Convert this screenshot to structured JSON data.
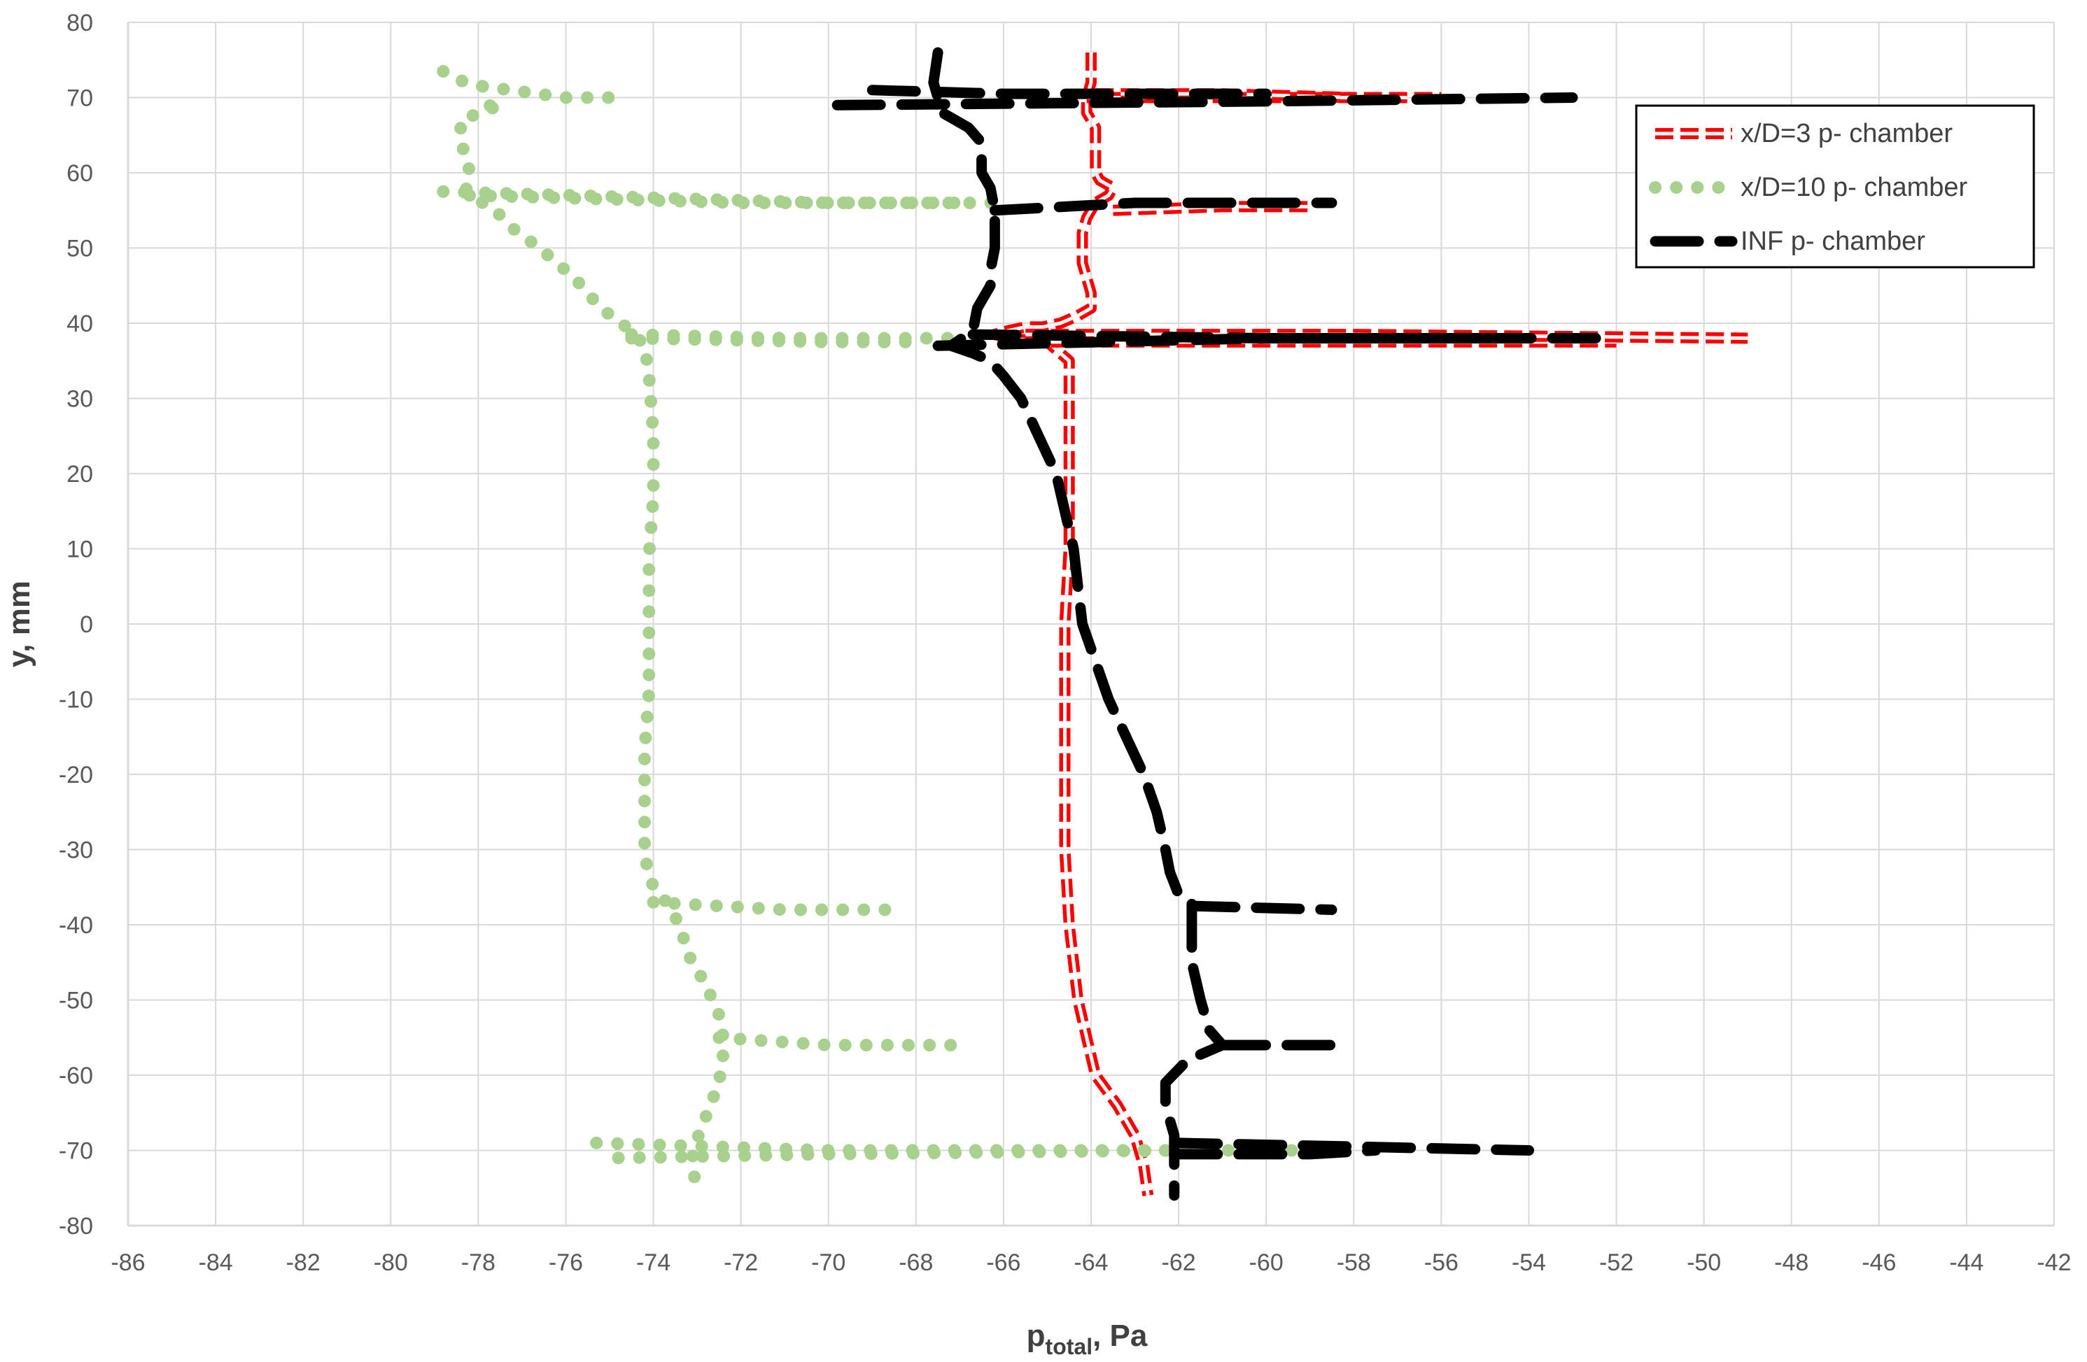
{
  "chart_data": {
    "type": "line",
    "xlabel_main": "p",
    "xlabel_sub": "total",
    "xlabel_unit": ", Pa",
    "ylabel": "y, mm",
    "xlim": [
      -86,
      -42
    ],
    "ylim": [
      -80,
      80
    ],
    "x_ticks": [
      -86,
      -84,
      -82,
      -80,
      -78,
      -76,
      -74,
      -72,
      -70,
      -68,
      -66,
      -64,
      -62,
      -60,
      -58,
      -56,
      -54,
      -52,
      -50,
      -48,
      -46,
      -44,
      -42
    ],
    "y_ticks": [
      80,
      70,
      60,
      50,
      40,
      30,
      20,
      10,
      0,
      -10,
      -20,
      -30,
      -40,
      -50,
      -60,
      -70,
      -80
    ],
    "grid": true,
    "legend_position": "top-right",
    "series": [
      {
        "name": "x/D=3 p- chamber",
        "color": "#ff0000",
        "style": "dashed-double",
        "segments": [
          [
            [
              -64.0,
              76
            ],
            [
              -64.0,
              72
            ],
            [
              -64.1,
              70
            ],
            [
              -64.1,
              68
            ],
            [
              -63.9,
              66
            ],
            [
              -63.9,
              64
            ],
            [
              -63.9,
              62
            ],
            [
              -63.9,
              60
            ],
            [
              -63.8,
              59
            ],
            [
              -63.5,
              58
            ],
            [
              -63.6,
              57
            ],
            [
              -63.9,
              56
            ],
            [
              -64.1,
              54
            ],
            [
              -64.2,
              52
            ],
            [
              -64.2,
              50
            ],
            [
              -64.2,
              48
            ],
            [
              -64.1,
              46
            ],
            [
              -64.0,
              44
            ],
            [
              -64.0,
              42
            ],
            [
              -64.3,
              41
            ],
            [
              -64.7,
              40
            ],
            [
              -65.1,
              39.5
            ],
            [
              -65.5,
              39.5
            ],
            [
              -65.9,
              39
            ],
            [
              -66.2,
              38.5
            ],
            [
              -65.9,
              38
            ],
            [
              -65.0,
              37.5
            ],
            [
              -64.7,
              36
            ],
            [
              -64.5,
              35
            ],
            [
              -64.5,
              30
            ],
            [
              -64.5,
              20
            ],
            [
              -64.5,
              10
            ],
            [
              -64.6,
              0
            ],
            [
              -64.6,
              -10
            ],
            [
              -64.6,
              -20
            ],
            [
              -64.6,
              -30
            ],
            [
              -64.5,
              -40
            ],
            [
              -64.4,
              -45
            ],
            [
              -64.3,
              -50
            ],
            [
              -64.1,
              -55
            ],
            [
              -63.9,
              -60
            ],
            [
              -63.4,
              -64
            ],
            [
              -63.0,
              -68
            ],
            [
              -62.8,
              -72
            ],
            [
              -62.7,
              -76
            ]
          ],
          [
            [
              -64.1,
              70
            ],
            [
              -60,
              70
            ],
            [
              -56,
              70
            ]
          ],
          [
            [
              -63.9,
              70.5
            ],
            [
              -61,
              70.5
            ],
            [
              -58,
              70
            ]
          ],
          [
            [
              -63.5,
              55
            ],
            [
              -61,
              55.5
            ],
            [
              -59,
              55.5
            ]
          ],
          [
            [
              -65.5,
              37.5
            ],
            [
              -58,
              37.5
            ],
            [
              -52,
              37.5
            ]
          ],
          [
            [
              -65.5,
              38.5
            ],
            [
              -58,
              38.5
            ],
            [
              -49,
              38
            ]
          ]
        ]
      },
      {
        "name": "x/D=10 p- chamber",
        "color": "#a9d18e",
        "style": "dotted",
        "segments": [
          [
            [
              -78.8,
              73.5
            ],
            [
              -78.3,
              72
            ],
            [
              -77.9,
              71.5
            ],
            [
              -77.7,
              68.5
            ],
            [
              -77.5,
              69
            ],
            [
              -78.4,
              67
            ],
            [
              -78.4,
              64
            ],
            [
              -78.2,
              61
            ],
            [
              -78.3,
              58
            ],
            [
              -78.2,
              57.5
            ],
            [
              -77.9,
              56
            ],
            [
              -77.6,
              55
            ],
            [
              -77.3,
              53
            ],
            [
              -76.6,
              50
            ],
            [
              -75.8,
              46
            ],
            [
              -75.2,
              42
            ],
            [
              -74.5,
              39
            ],
            [
              -74.2,
              37
            ],
            [
              -74.1,
              33
            ],
            [
              -74.0,
              25
            ],
            [
              -74.0,
              17
            ],
            [
              -74.1,
              9
            ],
            [
              -74.1,
              0
            ],
            [
              -74.1,
              -9
            ],
            [
              -74.2,
              -17
            ],
            [
              -74.2,
              -25
            ],
            [
              -74.2,
              -31
            ],
            [
              -74.0,
              -35
            ],
            [
              -73.7,
              -37
            ],
            [
              -73.4,
              -40
            ],
            [
              -73.2,
              -44
            ],
            [
              -72.8,
              -48
            ],
            [
              -72.5,
              -52
            ],
            [
              -72.4,
              -55
            ],
            [
              -72.4,
              -57
            ],
            [
              -72.5,
              -61
            ],
            [
              -72.7,
              -64
            ],
            [
              -72.9,
              -67
            ],
            [
              -73.1,
              -70
            ],
            [
              -73.1,
              -72
            ],
            [
              -73.0,
              -76
            ]
          ],
          [
            [
              -78.8,
              57.5
            ],
            [
              -70,
              56
            ],
            [
              -66,
              56
            ]
          ],
          [
            [
              -78.2,
              57
            ],
            [
              -72,
              56
            ],
            [
              -67,
              56
            ]
          ],
          [
            [
              -77.9,
              71.5
            ],
            [
              -76,
              70
            ],
            [
              -74.8,
              70
            ]
          ],
          [
            [
              -74.5,
              38
            ],
            [
              -70,
              37.5
            ],
            [
              -68,
              37.5
            ]
          ],
          [
            [
              -74.5,
              38.5
            ],
            [
              -71,
              38
            ],
            [
              -67,
              38
            ]
          ],
          [
            [
              -74.0,
              -37
            ],
            [
              -71,
              -38
            ],
            [
              -68.5,
              -38
            ]
          ],
          [
            [
              -72.5,
              -55
            ],
            [
              -70,
              -56
            ],
            [
              -67,
              -56
            ]
          ],
          [
            [
              -75.3,
              -69
            ],
            [
              -70,
              -70
            ],
            [
              -59,
              -70
            ]
          ],
          [
            [
              -74.8,
              -71
            ],
            [
              -70,
              -70.5
            ],
            [
              -62,
              -70
            ]
          ]
        ]
      },
      {
        "name": "INF p- chamber",
        "color": "#000000",
        "style": "long-dash",
        "segments": [
          [
            [
              -67.5,
              76
            ],
            [
              -67.6,
              72
            ],
            [
              -67.4,
              68
            ],
            [
              -66.8,
              66
            ],
            [
              -66.5,
              64
            ],
            [
              -66.5,
              60
            ],
            [
              -66.3,
              58
            ],
            [
              -66.2,
              55
            ],
            [
              -66.2,
              50
            ],
            [
              -66.3,
              47
            ],
            [
              -66.3,
              45
            ],
            [
              -66.6,
              42
            ],
            [
              -66.7,
              39
            ],
            [
              -67.2,
              37
            ],
            [
              -66.7,
              36
            ],
            [
              -66.3,
              35
            ],
            [
              -66.0,
              33
            ],
            [
              -65.6,
              30
            ],
            [
              -65.2,
              25
            ],
            [
              -64.8,
              20
            ],
            [
              -64.6,
              15
            ],
            [
              -64.4,
              10
            ],
            [
              -64.3,
              5
            ],
            [
              -64.2,
              0
            ],
            [
              -63.9,
              -5
            ],
            [
              -63.6,
              -10
            ],
            [
              -63.2,
              -15
            ],
            [
              -62.8,
              -20
            ],
            [
              -62.5,
              -25
            ],
            [
              -62.3,
              -30
            ],
            [
              -62.2,
              -33
            ],
            [
              -62.0,
              -36
            ],
            [
              -61.7,
              -37
            ],
            [
              -61.7,
              -40
            ],
            [
              -61.7,
              -45
            ],
            [
              -61.5,
              -50
            ],
            [
              -61.3,
              -54
            ],
            [
              -61.0,
              -56
            ],
            [
              -61.8,
              -58
            ],
            [
              -62.3,
              -61
            ],
            [
              -62.3,
              -64
            ],
            [
              -62.1,
              -68
            ],
            [
              -62.1,
              -71
            ],
            [
              -62.1,
              -76
            ]
          ],
          [
            [
              -69.8,
              69
            ],
            [
              -60,
              69.5
            ],
            [
              -53,
              70
            ]
          ],
          [
            [
              -69.0,
              71
            ],
            [
              -66,
              70.5
            ],
            [
              -60,
              70.5
            ]
          ],
          [
            [
              -66.2,
              55
            ],
            [
              -63,
              56
            ],
            [
              -58.5,
              56
            ]
          ],
          [
            [
              -67.5,
              37
            ],
            [
              -60,
              38
            ],
            [
              -54,
              38
            ]
          ],
          [
            [
              -66.7,
              38.5
            ],
            [
              -60,
              38
            ],
            [
              -52,
              38
            ]
          ],
          [
            [
              -61.7,
              -37.5
            ],
            [
              -58.5,
              -38
            ]
          ],
          [
            [
              -61.0,
              -56
            ],
            [
              -58.5,
              -56
            ]
          ],
          [
            [
              -62.1,
              -69
            ],
            [
              -58,
              -69.5
            ],
            [
              -54,
              -70
            ]
          ],
          [
            [
              -62.1,
              -70.5
            ],
            [
              -59,
              -70.5
            ],
            [
              -57.5,
              -70
            ]
          ]
        ]
      }
    ]
  }
}
